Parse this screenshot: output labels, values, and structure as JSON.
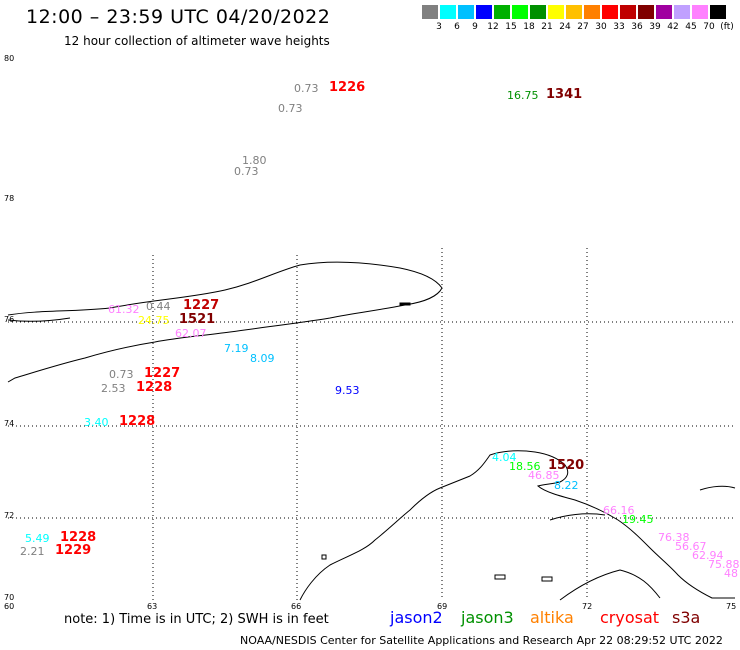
{
  "header": {
    "title": "12:00 – 23:59 UTC 04/20/2022",
    "subtitle": "12 hour collection of altimeter wave heights"
  },
  "scale": {
    "colors": [
      "#808080",
      "#00ffff",
      "#00c0ff",
      "#0000ff",
      "#00b000",
      "#00ff00",
      "#009000",
      "#ffff00",
      "#ffc000",
      "#ff8000",
      "#ff0000",
      "#c00000",
      "#800000",
      "#a000a0",
      "#c0a0ff",
      "#ff80ff",
      "#000000"
    ],
    "labels": [
      "3",
      "6",
      "9",
      "12",
      "15",
      "18",
      "21",
      "24",
      "27",
      "30",
      "33",
      "36",
      "39",
      "42",
      "45",
      "70",
      "(ft)"
    ]
  },
  "axes": {
    "lat_labels": [
      "80",
      "78",
      "76",
      "74",
      "72",
      "70"
    ],
    "lon_labels": [
      "60",
      "63",
      "66",
      "69",
      "72",
      "75"
    ]
  },
  "observations": [
    {
      "text": "0.73",
      "color": "#808080"
    },
    {
      "text": "1226",
      "color": "#ff0000"
    },
    {
      "text": "0.73",
      "color": "#808080"
    },
    {
      "text": "16.75",
      "color": "#009000"
    },
    {
      "text": "1341",
      "color": "#800000"
    },
    {
      "text": "1.80",
      "color": "#808080"
    },
    {
      "text": "0.73",
      "color": "#808080"
    },
    {
      "text": "61.32",
      "color": "#ff80ff"
    },
    {
      "text": "0.44",
      "color": "#808080"
    },
    {
      "text": "1227",
      "color": "#c00000"
    },
    {
      "text": "24.75",
      "color": "#ffff00"
    },
    {
      "text": "1521",
      "color": "#800000"
    },
    {
      "text": "62.07",
      "color": "#ff80ff"
    },
    {
      "text": "7.19",
      "color": "#00c0ff"
    },
    {
      "text": "8.09",
      "color": "#00c0ff"
    },
    {
      "text": "0.73",
      "color": "#808080"
    },
    {
      "text": "1227",
      "color": "#ff0000"
    },
    {
      "text": "2.53",
      "color": "#808080"
    },
    {
      "text": "1228",
      "color": "#ff0000"
    },
    {
      "text": "9.53",
      "color": "#0000ff"
    },
    {
      "text": "3.40",
      "color": "#00ffff"
    },
    {
      "text": "1228",
      "color": "#ff0000"
    },
    {
      "text": "4.04",
      "color": "#00ffff"
    },
    {
      "text": "18.56",
      "color": "#00ff00"
    },
    {
      "text": "1520",
      "color": "#800000"
    },
    {
      "text": "46.85",
      "color": "#ff80ff"
    },
    {
      "text": "8.22",
      "color": "#00c0ff"
    },
    {
      "text": "66.16",
      "color": "#ff80ff"
    },
    {
      "text": "19.45",
      "color": "#00ff00"
    },
    {
      "text": "76.38",
      "color": "#ff80ff"
    },
    {
      "text": "56.67",
      "color": "#ff80ff"
    },
    {
      "text": "62.94",
      "color": "#ff80ff"
    },
    {
      "text": "75.88",
      "color": "#ff80ff"
    },
    {
      "text": "48",
      "color": "#ff80ff"
    },
    {
      "text": "5.49",
      "color": "#00ffff"
    },
    {
      "text": "1228",
      "color": "#ff0000"
    },
    {
      "text": "2.21",
      "color": "#808080"
    },
    {
      "text": "1229",
      "color": "#ff0000"
    }
  ],
  "footer": {
    "note": "note:  1) Time is in UTC; 2) SWH is in feet",
    "missions": [
      {
        "name": "jason2",
        "color": "#0000ff"
      },
      {
        "name": "jason3",
        "color": "#009000"
      },
      {
        "name": "altika",
        "color": "#ff8000"
      },
      {
        "name": "cryosat",
        "color": "#ff0000"
      },
      {
        "name": "s3a",
        "color": "#800000"
      }
    ],
    "credit": "NOAA/NESDIS Center for Satellite Applications and Research    Apr 22 08:29:52 UTC 2022"
  }
}
